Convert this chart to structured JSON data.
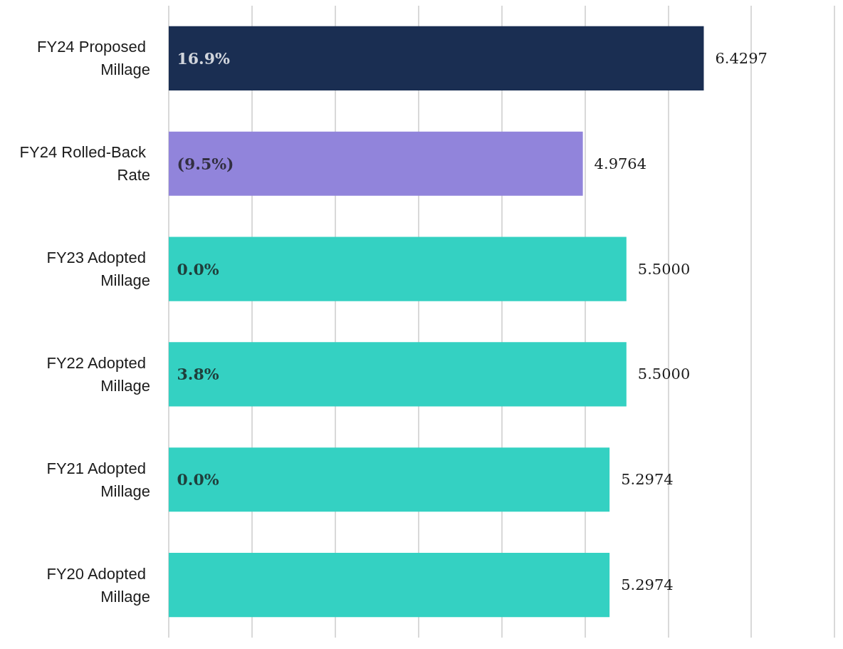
{
  "chart_data": {
    "type": "bar",
    "orientation": "horizontal",
    "categories": [
      "FY24 Proposed Millage",
      "FY24 Rolled-Back Rate",
      "FY23 Adopted Millage",
      "FY22 Adopted Millage",
      "FY21 Adopted Millage",
      "FY20 Adopted Millage"
    ],
    "values": [
      6.4297,
      4.9764,
      5.5,
      5.5,
      5.2974,
      5.2974
    ],
    "value_labels": [
      "6.4297",
      "4.9764",
      "5.5000",
      "5.5000",
      "5.2974",
      "5.2974"
    ],
    "colors": [
      "#1a2e52",
      "#9184db",
      "#34d1c2",
      "#34d1c2",
      "#34d1c2",
      "#34d1c2"
    ],
    "xlim": [
      0,
      8
    ],
    "xticks": [
      {
        "value": 0,
        "label": null
      },
      {
        "value": 1,
        "label": null
      },
      {
        "value": 2,
        "label": null
      },
      {
        "value": 3,
        "label": null
      },
      {
        "value": 4,
        "label": null
      },
      {
        "value": 5,
        "label": null
      },
      {
        "value": 6,
        "label": null
      },
      {
        "value": 7,
        "label": null
      },
      {
        "value": 8,
        "label": null
      }
    ],
    "tick_labels": "y",
    "grid": "x",
    "annotations": [
      "16.9%",
      "(9.5%)",
      "0.0%",
      "3.8%",
      "0.0%"
    ]
  }
}
